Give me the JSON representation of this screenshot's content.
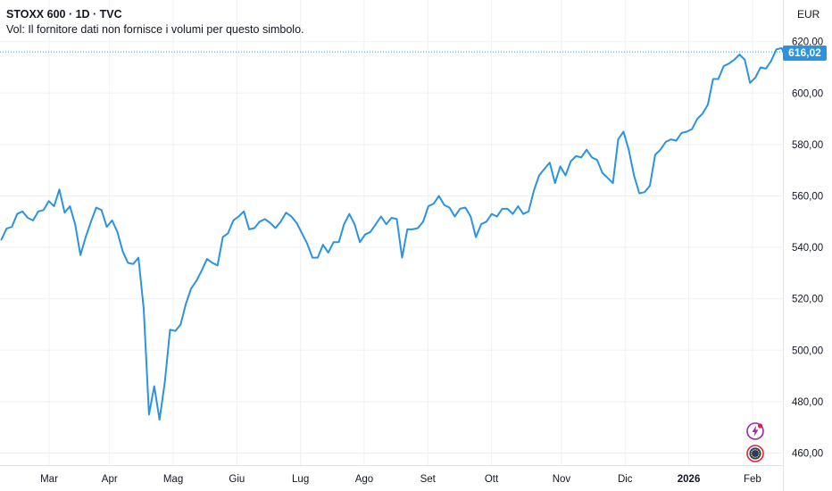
{
  "header": {
    "title": "STOXX 600 · 1D · TVC",
    "volume_note": "Vol: Il fornitore dati non fornisce i volumi per questo simbolo."
  },
  "price_scale": {
    "currency": "EUR",
    "last_price_label": "616,02"
  },
  "colors": {
    "line": "#2b93e0",
    "badge": "#2b93e0",
    "grid": "#eef0f3",
    "icon_purple": "#9c27b0",
    "icon_red": "#e0233a",
    "icon_navy": "#253a6e"
  },
  "icons": [
    "lightning-badge-icon",
    "eu-flag-icon"
  ],
  "chart_data": {
    "type": "line",
    "title": "STOXX 600 · 1D · TVC",
    "ylabel": "EUR",
    "ylim": [
      456,
      624
    ],
    "xlim": [
      -6,
      253
    ],
    "last_value": 616.02,
    "yticks": [
      {
        "value": 460,
        "label": "460,00"
      },
      {
        "value": 480,
        "label": "480,00"
      },
      {
        "value": 500,
        "label": "500,00"
      },
      {
        "value": 520,
        "label": "520,00"
      },
      {
        "value": 540,
        "label": "540,00"
      },
      {
        "value": 560,
        "label": "560,00"
      },
      {
        "value": 580,
        "label": "580,00"
      },
      {
        "value": 600,
        "label": "600,00"
      },
      {
        "value": 620,
        "label": "620,00"
      }
    ],
    "xticks": [
      {
        "x": 9,
        "label": "Mar",
        "bold": false
      },
      {
        "x": 28,
        "label": "Apr",
        "bold": false
      },
      {
        "x": 48,
        "label": "Mag",
        "bold": false
      },
      {
        "x": 68,
        "label": "Giu",
        "bold": false
      },
      {
        "x": 88,
        "label": "Lug",
        "bold": false
      },
      {
        "x": 108,
        "label": "Ago",
        "bold": false
      },
      {
        "x": 128,
        "label": "Set",
        "bold": false
      },
      {
        "x": 148,
        "label": "Ott",
        "bold": false
      },
      {
        "x": 170,
        "label": "Nov",
        "bold": false
      },
      {
        "x": 190,
        "label": "Dic",
        "bold": false
      },
      {
        "x": 210,
        "label": "2026",
        "bold": true
      },
      {
        "x": 230,
        "label": "Feb",
        "bold": false
      }
    ],
    "series": [
      {
        "name": "STOXX 600",
        "values": [
          543.0,
          547.3,
          548.0,
          553.0,
          554.0,
          551.5,
          550.5,
          554.0,
          554.5,
          558.0,
          556.0,
          562.5,
          553.5,
          556.0,
          549.0,
          537.0,
          544.0,
          550.0,
          555.5,
          554.5,
          548.0,
          550.5,
          546.0,
          538.5,
          534.0,
          533.5,
          536.0,
          516.0,
          475.0,
          486.0,
          473.0,
          487.5,
          508.0,
          507.5,
          510.0,
          518.0,
          524.0,
          527.0,
          531.0,
          535.5,
          534.0,
          533.0,
          544.0,
          545.5,
          550.5,
          552.0,
          554.0,
          547.0,
          547.5,
          550.0,
          551.0,
          549.5,
          547.5,
          550.0,
          553.5,
          552.0,
          549.5,
          545.5,
          541.5,
          536.0,
          536.0,
          541.0,
          538.0,
          542.0,
          542.0,
          549.0,
          553.0,
          549.0,
          542.0,
          545.0,
          546.0,
          549.0,
          552.0,
          549.0,
          551.5,
          551.0,
          536.0,
          547.0,
          547.0,
          547.5,
          550.0,
          556.0,
          557.0,
          560.0,
          556.5,
          555.5,
          552.0,
          555.0,
          555.5,
          552.0,
          544.0,
          549.0,
          550.0,
          553.0,
          552.0,
          555.0,
          555.0,
          553.0,
          556.0,
          553.0,
          554.0,
          562.0,
          568.0,
          570.5,
          573.0,
          565.0,
          571.5,
          568.0,
          573.5,
          575.5,
          575.0,
          578.0,
          575.0,
          574.0,
          569.0,
          567.0,
          565.0,
          582.0,
          585.0,
          578.0,
          568.0,
          561.0,
          561.5,
          564.0,
          576.0,
          578.0,
          581.0,
          582.0,
          581.5,
          584.5,
          585.0,
          586.0,
          590.0,
          592.0,
          595.5,
          605.5,
          605.5,
          610.5,
          611.5,
          613.0,
          615.0,
          613.0,
          604.0,
          606.0,
          610.0,
          609.5,
          612.5,
          617.0,
          617.5,
          613.0,
          616.02
        ]
      }
    ],
    "series_x_start": -6,
    "series_x_end": 242.5
  }
}
